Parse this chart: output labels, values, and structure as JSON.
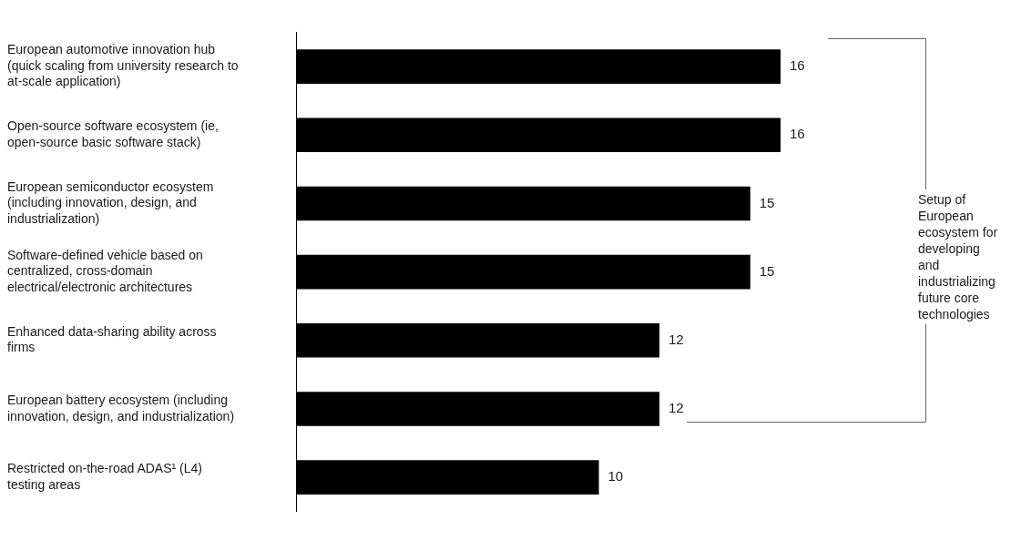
{
  "chart_data": {
    "type": "bar",
    "orientation": "horizontal",
    "categories": [
      "European automotive innovation hub (quick scaling from university research to at-scale application)",
      "Open-source software ecosystem (ie, open-source basic software stack)",
      "European semiconductor ecosystem (including innovation, design, and industrialization)",
      "Software-defined vehicle based on centralized, cross-domain electrical/electronic architectures",
      "Enhanced data-sharing ability across firms",
      "European battery ecosystem (including innovation, design, and industrialization)",
      "Restricted on-the-road ADAS¹ (L4) testing areas"
    ],
    "values": [
      16,
      16,
      15,
      15,
      12,
      12,
      10
    ],
    "color": "#000000",
    "data_labels": true,
    "annotations": [
      "Setup of European ecosystem for developing and industrializing future core technologies"
    ]
  }
}
